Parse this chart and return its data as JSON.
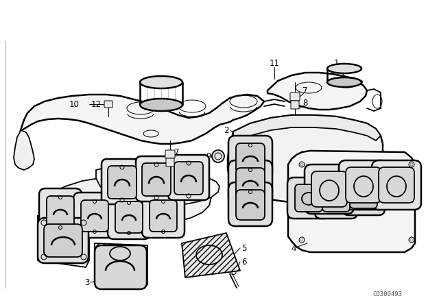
{
  "background_color": "#ffffff",
  "line_color": "#000000",
  "catalog_num": "C0300493",
  "lw_main": 1.3,
  "lw_thin": 0.7,
  "lw_bold": 1.8
}
